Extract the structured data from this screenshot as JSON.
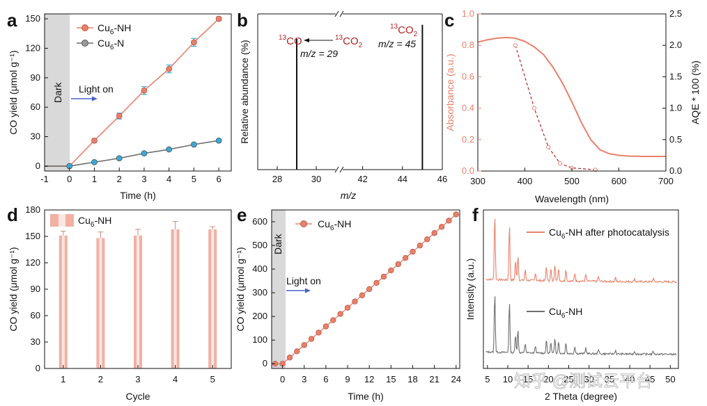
{
  "colors": {
    "orange": "#e8806a",
    "gray": "#6e6e6e",
    "blue": "#4a63c8",
    "red": "#b22222",
    "dark_shade": "#d9d9d9",
    "light_blue": "#39a9d8"
  },
  "chart_data": [
    {
      "panel": "a",
      "type": "line",
      "xlabel": "Time (h)",
      "ylabel": "CO yield (μmol g⁻¹)",
      "xlim": [
        -1,
        6.5
      ],
      "ylim": [
        -5,
        155
      ],
      "xticks": [
        "-1",
        "0",
        "1",
        "2",
        "3",
        "4",
        "5",
        "6"
      ],
      "yticks": [
        "0",
        "30",
        "60",
        "90",
        "120",
        "150"
      ],
      "dark_label": "Dark",
      "light_label": "Light on",
      "legend_placement": "top-right",
      "series": [
        {
          "name": "Cu6-NH",
          "name_base": "Cu",
          "name_sub": "6",
          "name_rest": "-NH",
          "x": [
            -1,
            0,
            1,
            2,
            3,
            4,
            5,
            6
          ],
          "values": [
            0,
            0,
            26,
            51,
            77,
            99,
            126,
            150
          ],
          "err": [
            0,
            0,
            2,
            3,
            4,
            4,
            4,
            2
          ]
        },
        {
          "name": "Cu6-N",
          "name_base": "Cu",
          "name_sub": "6",
          "name_rest": "-N",
          "x": [
            -1,
            0,
            1,
            2,
            3,
            4,
            5,
            6
          ],
          "values": [
            0,
            0,
            4,
            8,
            13,
            17,
            22,
            26
          ],
          "err": [
            0,
            0,
            1,
            1,
            1,
            1,
            1,
            1
          ]
        }
      ]
    },
    {
      "panel": "b",
      "type": "bar",
      "xlabel": "m/z",
      "ylabel": "Relative abundance (%)",
      "xticks": [
        "28",
        "30",
        "42",
        "44",
        "46"
      ],
      "peaks": [
        {
          "mz": 29,
          "height": 0.84,
          "ion_sup": "13",
          "ion": "CO",
          "mz_label": "m/z = 29"
        },
        {
          "mz": 45,
          "height": 0.93,
          "ion_sup": "13",
          "ion": "CO",
          "ion_sub": "2",
          "mz_label": "m/z = 45"
        }
      ],
      "arrow_label_sup": "13",
      "arrow_label": "CO",
      "arrow_label_sub": "2"
    },
    {
      "panel": "c",
      "type": "line",
      "xlabel": "Wavelength (nm)",
      "ylabel": "Absorbance (a.u.)",
      "y2label": "AQE * 100 (%)",
      "xlim": [
        300,
        700
      ],
      "ylim": [
        0,
        1.0
      ],
      "y2lim": [
        0,
        2.5
      ],
      "xticks": [
        "300",
        "400",
        "500",
        "600",
        "700"
      ],
      "yticks": [
        "0.0",
        "0.2",
        "0.4",
        "0.6",
        "0.8",
        "1.0"
      ],
      "y2ticks": [
        "0.0",
        "0.5",
        "1.0",
        "1.5",
        "2.0",
        "2.5"
      ],
      "absorbance": {
        "x": [
          300,
          320,
          340,
          360,
          380,
          400,
          420,
          440,
          460,
          480,
          500,
          520,
          540,
          560,
          580,
          600,
          620,
          650,
          700
        ],
        "values": [
          0.82,
          0.835,
          0.845,
          0.85,
          0.845,
          0.825,
          0.79,
          0.74,
          0.66,
          0.56,
          0.44,
          0.31,
          0.2,
          0.135,
          0.11,
          0.1,
          0.095,
          0.093,
          0.093
        ]
      },
      "aqe": {
        "x": [
          380,
          420,
          450,
          475,
          500,
          550
        ],
        "values": [
          2.0,
          1.0,
          0.38,
          0.12,
          0.05,
          0.02
        ]
      }
    },
    {
      "panel": "d",
      "type": "bar",
      "xlabel": "Cycle",
      "ylabel": "CO yield (μmol g⁻¹)",
      "ylim": [
        0,
        180
      ],
      "categories": [
        "1",
        "2",
        "3",
        "4",
        "5"
      ],
      "yticks": [
        "0",
        "30",
        "60",
        "90",
        "120",
        "150",
        "180"
      ],
      "series": [
        {
          "name": "Cu6-NH",
          "name_base": "Cu",
          "name_sub": "6",
          "name_rest": "-NH",
          "values": [
            151,
            148,
            151,
            158,
            158
          ],
          "err": [
            5,
            7,
            7,
            9,
            3
          ]
        }
      ]
    },
    {
      "panel": "e",
      "type": "scatter",
      "xlabel": "Time (h)",
      "ylabel": "CO yield (μmol g⁻¹)",
      "xlim": [
        -1.5,
        24.5
      ],
      "ylim": [
        -20,
        650
      ],
      "xticks": [
        "0",
        "3",
        "6",
        "9",
        "12",
        "15",
        "18",
        "21",
        "24"
      ],
      "yticks": [
        "0",
        "100",
        "200",
        "300",
        "400",
        "500",
        "600"
      ],
      "dark_label": "Dark",
      "light_label": "Light on",
      "series": [
        {
          "name": "Cu6-NH",
          "name_base": "Cu",
          "name_sub": "6",
          "name_rest": "-NH",
          "x_start": -1,
          "x_step": 1,
          "count": 26,
          "slope": 26.3
        }
      ]
    },
    {
      "panel": "f",
      "type": "line",
      "xlabel": "2 Theta (degree)",
      "ylabel": "Intensity (a.u.)",
      "xlim": [
        4,
        52
      ],
      "xticks": [
        "5",
        "10",
        "15",
        "20",
        "25",
        "30",
        "35",
        "40",
        "45",
        "50"
      ],
      "series": [
        {
          "name": "Cu6-NH after photocatalysis",
          "name_base": "Cu",
          "name_sub": "6",
          "name_rest": "-NH after photocatalysis"
        },
        {
          "name": "Cu6-NH",
          "name_base": "Cu",
          "name_sub": "6",
          "name_rest": "-NH"
        }
      ],
      "peaks": [
        {
          "x": 6.8,
          "h": 1.0
        },
        {
          "x": 10.4,
          "h": 0.85
        },
        {
          "x": 11.9,
          "h": 0.3
        },
        {
          "x": 12.5,
          "h": 0.38
        },
        {
          "x": 14.3,
          "h": 0.16
        },
        {
          "x": 16.8,
          "h": 0.12
        },
        {
          "x": 19.5,
          "h": 0.22
        },
        {
          "x": 20.6,
          "h": 0.18
        },
        {
          "x": 21.6,
          "h": 0.26
        },
        {
          "x": 22.5,
          "h": 0.2
        },
        {
          "x": 24.3,
          "h": 0.18
        },
        {
          "x": 26.5,
          "h": 0.12
        },
        {
          "x": 29.2,
          "h": 0.1
        },
        {
          "x": 32.3,
          "h": 0.08
        },
        {
          "x": 36.5,
          "h": 0.06
        },
        {
          "x": 41.2,
          "h": 0.05
        },
        {
          "x": 45.8,
          "h": 0.05
        }
      ]
    }
  ],
  "watermark": "知乎 @测试云平台"
}
